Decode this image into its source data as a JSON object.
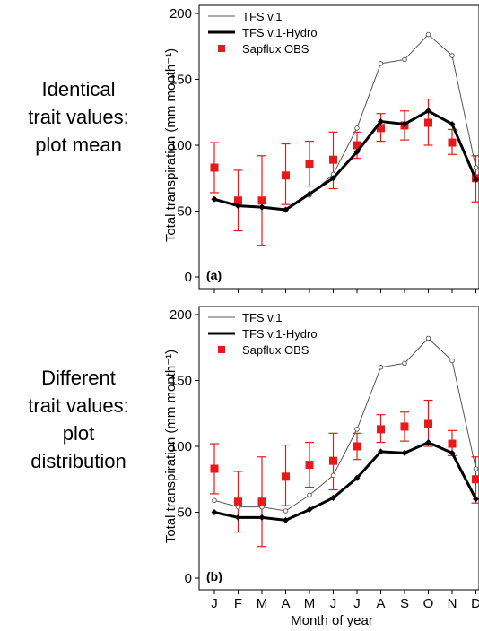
{
  "side_labels": {
    "a": [
      "Identical",
      "trait values:",
      "plot mean"
    ],
    "b": [
      "Different",
      "trait values:",
      "plot",
      "distribution"
    ]
  },
  "chart_data": [
    {
      "type": "line",
      "panel_tag": "(a)",
      "ylabel": "Total transpiration (mm month⁻¹)",
      "xlabel": "",
      "categories": [
        "J",
        "F",
        "M",
        "A",
        "M",
        "J",
        "J",
        "A",
        "S",
        "O",
        "N",
        "D"
      ],
      "ylim": [
        0,
        200
      ],
      "yticks": [
        0,
        50,
        100,
        150,
        200
      ],
      "grid": false,
      "legend": "top-left",
      "series": [
        {
          "name": "TFS v.1",
          "color": "#555555",
          "style": "thin-open-circles",
          "values": [
            59,
            54,
            53,
            51,
            62,
            78,
            113,
            162,
            165,
            184,
            168,
            83
          ]
        },
        {
          "name": "TFS v.1-Hydro",
          "color": "#000000",
          "style": "thick-filled-diamonds",
          "values": [
            59,
            54,
            53,
            51,
            63,
            75,
            95,
            118,
            116,
            126,
            116,
            74
          ]
        },
        {
          "name": "Sapflux OBS",
          "color": "#e8191b",
          "style": "squares-with-errorbars",
          "values": [
            83,
            58,
            58,
            77,
            86,
            89,
            100,
            113,
            115,
            117,
            102,
            75
          ],
          "lower": [
            64,
            35,
            24,
            55,
            69,
            67,
            90,
            103,
            104,
            100,
            93,
            57
          ],
          "upper": [
            102,
            81,
            92,
            101,
            103,
            110,
            110,
            124,
            126,
            135,
            112,
            92
          ]
        }
      ]
    },
    {
      "type": "line",
      "panel_tag": "(b)",
      "ylabel": "Total transpiration (mm month⁻¹)",
      "xlabel": "Month of year",
      "categories": [
        "J",
        "F",
        "M",
        "A",
        "M",
        "J",
        "J",
        "A",
        "S",
        "O",
        "N",
        "D"
      ],
      "ylim": [
        0,
        200
      ],
      "yticks": [
        0,
        50,
        100,
        150,
        200
      ],
      "grid": false,
      "legend": "top-left",
      "series": [
        {
          "name": "TFS v.1",
          "color": "#555555",
          "style": "thin-open-circles",
          "values": [
            59,
            54,
            54,
            51,
            63,
            78,
            113,
            160,
            163,
            182,
            165,
            83
          ]
        },
        {
          "name": "TFS v.1-Hydro",
          "color": "#000000",
          "style": "thick-filled-diamonds",
          "values": [
            50,
            46,
            46,
            44,
            52,
            61,
            76,
            96,
            95,
            103,
            95,
            60
          ]
        },
        {
          "name": "Sapflux OBS",
          "color": "#e8191b",
          "style": "squares-with-errorbars",
          "values": [
            83,
            58,
            58,
            77,
            86,
            89,
            100,
            113,
            115,
            117,
            102,
            75
          ],
          "lower": [
            64,
            35,
            24,
            55,
            69,
            67,
            90,
            103,
            104,
            100,
            93,
            57
          ],
          "upper": [
            102,
            81,
            92,
            101,
            103,
            110,
            110,
            124,
            126,
            135,
            112,
            92
          ]
        }
      ]
    }
  ]
}
